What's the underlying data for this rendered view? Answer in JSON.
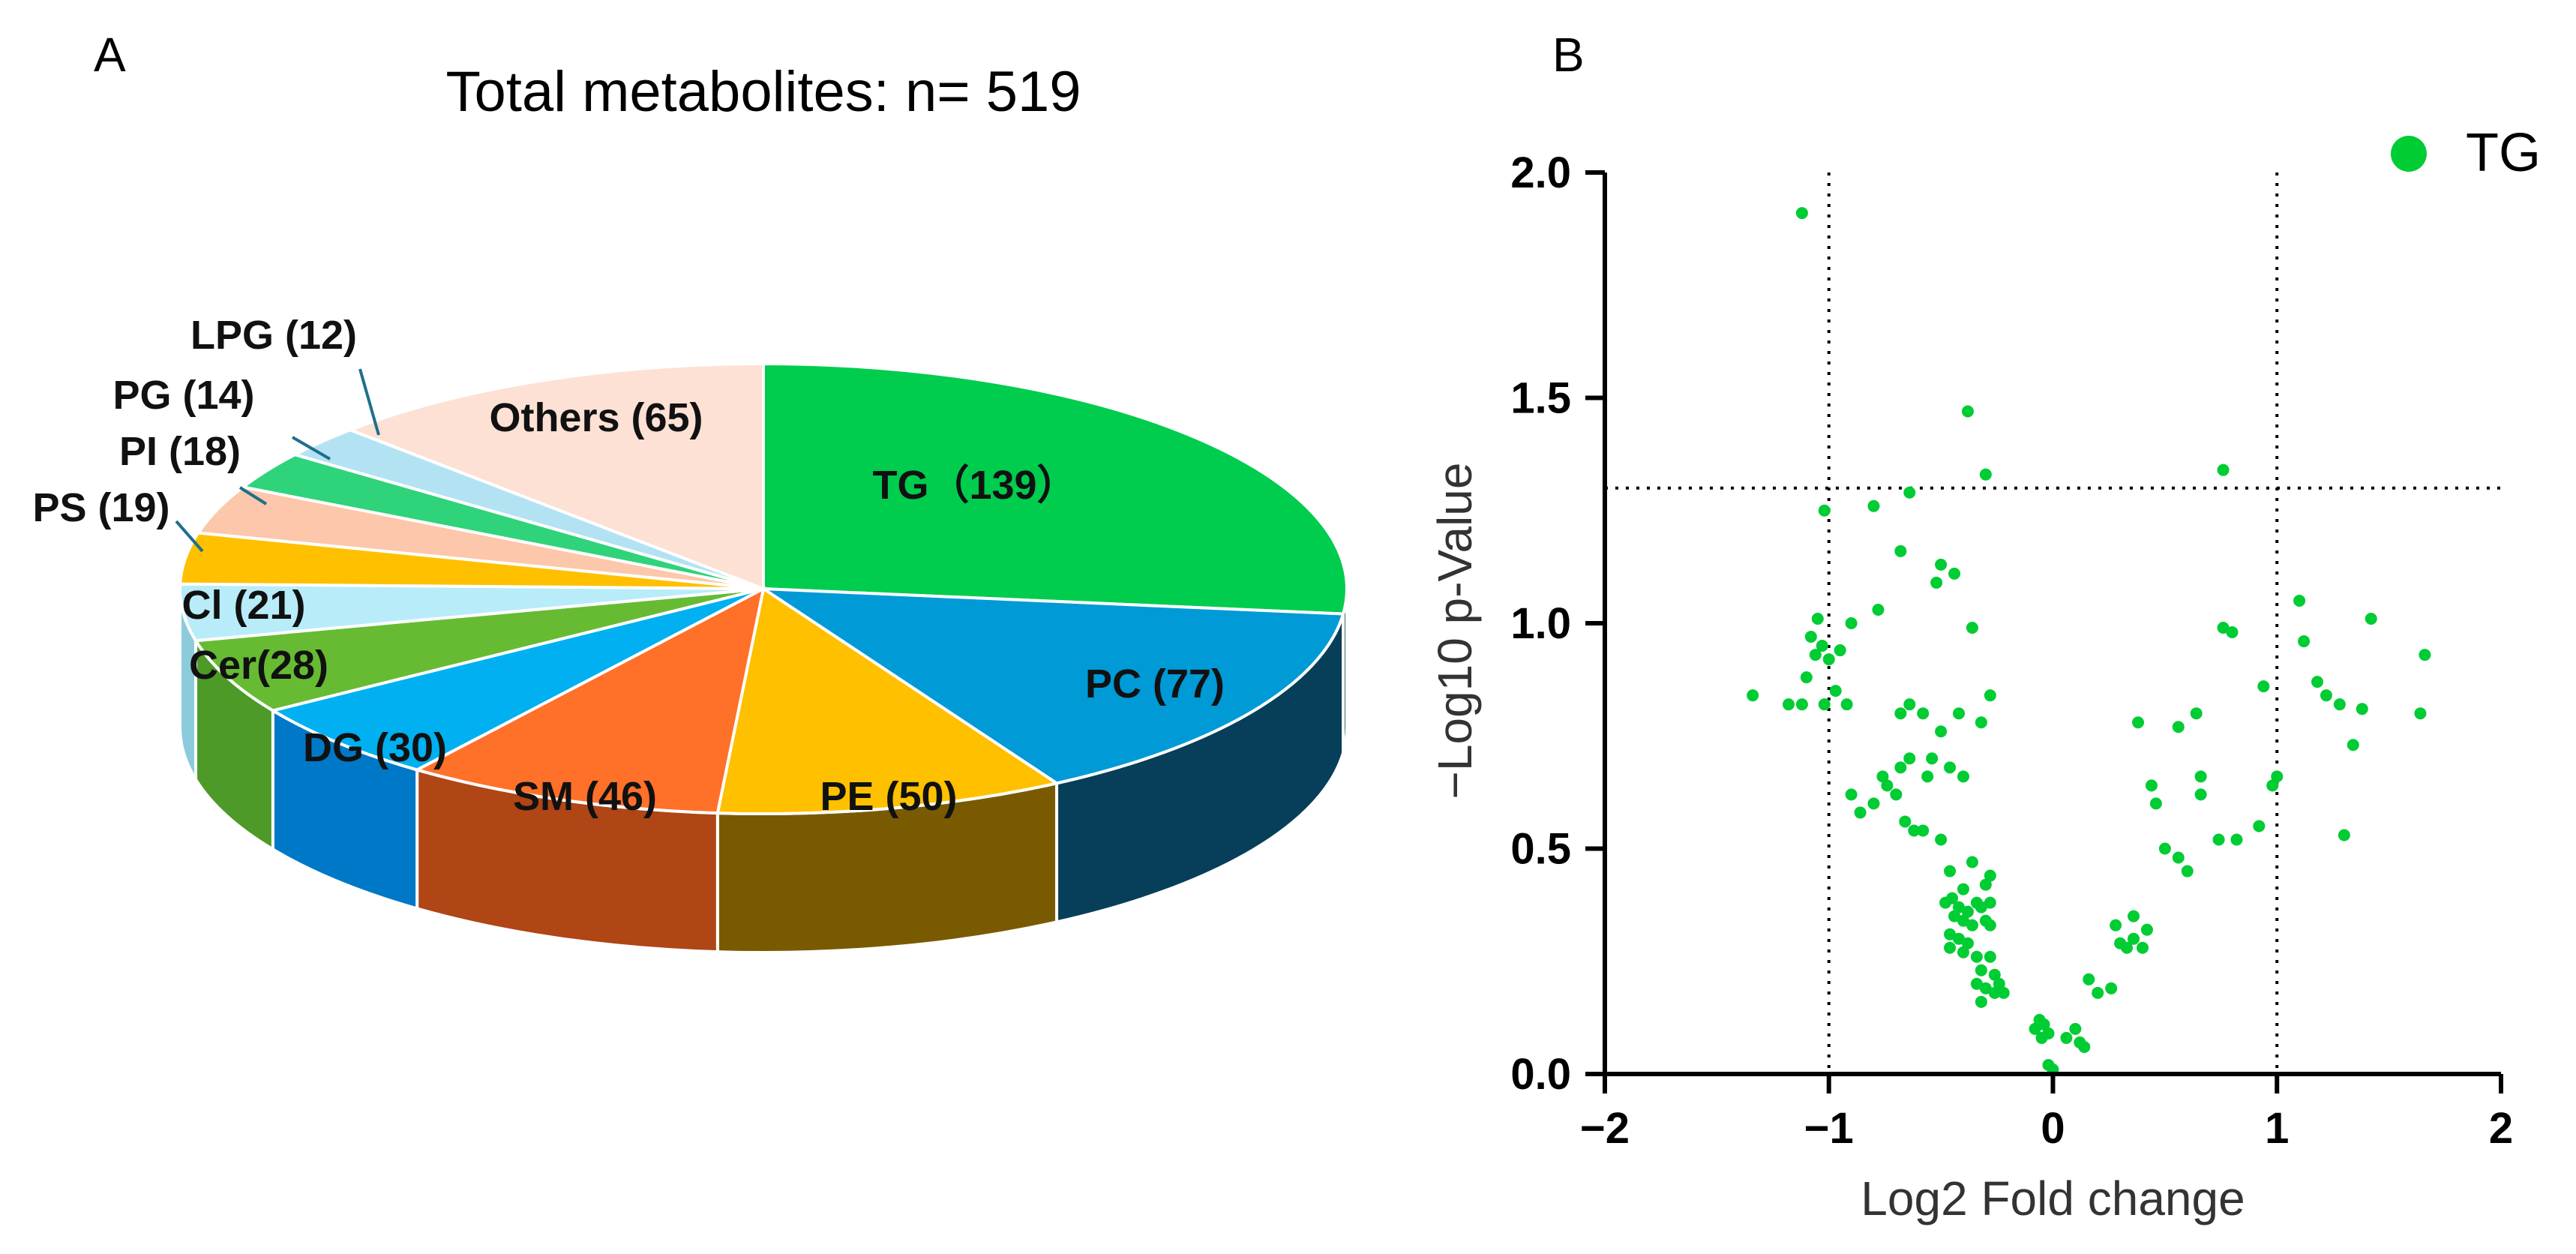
{
  "panel_a": {
    "letter": "A",
    "title": "Total metabolites: n= 519"
  },
  "panel_b": {
    "letter": "B"
  },
  "chart_data": [
    {
      "type": "pie",
      "title": "Total metabolites: n= 519",
      "total": 519,
      "style": "3d",
      "slices": [
        {
          "label": "TG（139）",
          "value": 139,
          "color": "#00cc4e",
          "side": "#0a4226"
        },
        {
          "label": "PC (77)",
          "value": 77,
          "color": "#009ad6",
          "side": "#073f5a"
        },
        {
          "label": "PE (50)",
          "value": 50,
          "color": "#ffc000",
          "side": "#7a5a00"
        },
        {
          "label": "SM (46)",
          "value": 46,
          "color": "#ff7028",
          "side": "#b04515"
        },
        {
          "label": "DG (30)",
          "value": 30,
          "color": "#00b0f0",
          "side": "#0078c8"
        },
        {
          "label": "Cer(28)",
          "value": 28,
          "color": "#66bb33",
          "side": "#4e9a28"
        },
        {
          "label": "Cl (21)",
          "value": 21,
          "color": "#b8ecf8",
          "side": "#8ccbdc"
        },
        {
          "label": "PS (19)",
          "value": 19,
          "color": "#ffc000",
          "side": "#c09000"
        },
        {
          "label": "PI (18)",
          "value": 18,
          "color": "#fcc7aa",
          "side": "#d0987a"
        },
        {
          "label": "PG (14)",
          "value": 14,
          "color": "#2ed37a",
          "side": "#1a9a55"
        },
        {
          "label": "LPG (12)",
          "value": 12,
          "color": "#b3e3f3",
          "side": "#86bfd2"
        },
        {
          "label": "Others (65)",
          "value": 65,
          "color": "#fde1d4",
          "side": "#d8b6a6"
        }
      ]
    },
    {
      "type": "scatter",
      "title": "",
      "xlabel": "Log2 Fold change",
      "ylabel": "−Log10 p-Value",
      "xlim": [
        -2,
        2
      ],
      "ylim": [
        0,
        2.0
      ],
      "xticks": [
        -2,
        -1,
        0,
        1,
        2
      ],
      "xtick_labels": [
        "−2",
        "−1",
        "0",
        "1",
        "2"
      ],
      "yticks": [
        0,
        0.5,
        1.0,
        1.5,
        2.0
      ],
      "ytick_labels": [
        "0.0",
        "0.5",
        "1.0",
        "1.5",
        "2.0"
      ],
      "reference_lines": {
        "x": [
          -1,
          1
        ],
        "y": [
          1.3
        ],
        "style": "dotted"
      },
      "series": [
        {
          "name": "TG",
          "color": "#00cc33",
          "points": [
            [
              -1.12,
              1.91
            ],
            [
              -0.38,
              1.47
            ],
            [
              0.76,
              1.34
            ],
            [
              -0.3,
              1.33
            ],
            [
              -0.64,
              1.29
            ],
            [
              -0.8,
              1.26
            ],
            [
              -1.02,
              1.25
            ],
            [
              -0.68,
              1.16
            ],
            [
              -0.5,
              1.13
            ],
            [
              -0.44,
              1.11
            ],
            [
              -0.52,
              1.09
            ],
            [
              -1.05,
              1.01
            ],
            [
              -0.9,
              1.0
            ],
            [
              -0.78,
              1.03
            ],
            [
              -0.36,
              0.99
            ],
            [
              -1.08,
              0.97
            ],
            [
              -1.03,
              0.95
            ],
            [
              -0.95,
              0.94
            ],
            [
              -1.06,
              0.93
            ],
            [
              -1.0,
              0.92
            ],
            [
              -1.1,
              0.88
            ],
            [
              -0.97,
              0.85
            ],
            [
              -0.92,
              0.82
            ],
            [
              -1.02,
              0.82
            ],
            [
              -1.12,
              0.82
            ],
            [
              -1.18,
              0.82
            ],
            [
              -1.34,
              0.84
            ],
            [
              -0.28,
              0.84
            ],
            [
              -0.32,
              0.78
            ],
            [
              -0.64,
              0.82
            ],
            [
              -0.68,
              0.8
            ],
            [
              -0.58,
              0.8
            ],
            [
              -0.42,
              0.8
            ],
            [
              -0.5,
              0.76
            ],
            [
              -0.54,
              0.7
            ],
            [
              -0.64,
              0.7
            ],
            [
              -0.68,
              0.68
            ],
            [
              -0.76,
              0.66
            ],
            [
              -0.9,
              0.62
            ],
            [
              -0.7,
              0.62
            ],
            [
              -0.74,
              0.64
            ],
            [
              -0.56,
              0.66
            ],
            [
              -0.46,
              0.68
            ],
            [
              -0.4,
              0.66
            ],
            [
              -0.86,
              0.58
            ],
            [
              -0.8,
              0.6
            ],
            [
              -0.66,
              0.56
            ],
            [
              -0.62,
              0.54
            ],
            [
              -0.58,
              0.54
            ],
            [
              -0.5,
              0.52
            ],
            [
              -0.46,
              0.45
            ],
            [
              -0.36,
              0.47
            ],
            [
              -0.3,
              0.42
            ],
            [
              -0.28,
              0.44
            ],
            [
              -0.4,
              0.41
            ],
            [
              -0.45,
              0.39
            ],
            [
              -0.48,
              0.38
            ],
            [
              -0.42,
              0.37
            ],
            [
              -0.38,
              0.36
            ],
            [
              -0.34,
              0.38
            ],
            [
              -0.32,
              0.37
            ],
            [
              -0.28,
              0.38
            ],
            [
              -0.44,
              0.35
            ],
            [
              -0.4,
              0.34
            ],
            [
              -0.36,
              0.33
            ],
            [
              -0.3,
              0.34
            ],
            [
              -0.28,
              0.33
            ],
            [
              -0.46,
              0.31
            ],
            [
              -0.42,
              0.3
            ],
            [
              -0.38,
              0.29
            ],
            [
              -0.46,
              0.28
            ],
            [
              -0.4,
              0.27
            ],
            [
              -0.34,
              0.26
            ],
            [
              -0.28,
              0.26
            ],
            [
              -0.32,
              0.23
            ],
            [
              -0.26,
              0.22
            ],
            [
              -0.34,
              0.2
            ],
            [
              -0.3,
              0.19
            ],
            [
              -0.24,
              0.2
            ],
            [
              -0.26,
              0.18
            ],
            [
              -0.22,
              0.18
            ],
            [
              -0.32,
              0.16
            ],
            [
              -0.06,
              0.12
            ],
            [
              -0.04,
              0.11
            ],
            [
              -0.08,
              0.1
            ],
            [
              -0.02,
              0.09
            ],
            [
              -0.05,
              0.08
            ],
            [
              -0.02,
              0.02
            ],
            [
              0.0,
              0.01
            ],
            [
              0.1,
              0.1
            ],
            [
              0.06,
              0.08
            ],
            [
              0.12,
              0.07
            ],
            [
              0.14,
              0.06
            ],
            [
              0.16,
              0.21
            ],
            [
              0.2,
              0.18
            ],
            [
              0.26,
              0.19
            ],
            [
              0.3,
              0.29
            ],
            [
              0.28,
              0.33
            ],
            [
              0.36,
              0.35
            ],
            [
              0.36,
              0.3
            ],
            [
              0.4,
              0.28
            ],
            [
              0.42,
              0.32
            ],
            [
              0.33,
              0.28
            ],
            [
              0.38,
              0.78
            ],
            [
              0.44,
              0.64
            ],
            [
              0.46,
              0.6
            ],
            [
              0.56,
              0.77
            ],
            [
              0.64,
              0.8
            ],
            [
              0.66,
              0.66
            ],
            [
              0.66,
              0.62
            ],
            [
              0.56,
              0.48
            ],
            [
              0.5,
              0.5
            ],
            [
              0.6,
              0.45
            ],
            [
              0.74,
              0.52
            ],
            [
              0.76,
              0.99
            ],
            [
              0.8,
              0.98
            ],
            [
              0.82,
              0.52
            ],
            [
              0.92,
              0.55
            ],
            [
              0.94,
              0.86
            ],
            [
              0.98,
              0.64
            ],
            [
              1.0,
              0.66
            ],
            [
              1.1,
              1.05
            ],
            [
              1.12,
              0.96
            ],
            [
              1.18,
              0.87
            ],
            [
              1.22,
              0.84
            ],
            [
              1.28,
              0.82
            ],
            [
              1.3,
              0.53
            ],
            [
              1.34,
              0.73
            ],
            [
              1.38,
              0.81
            ],
            [
              1.42,
              1.01
            ],
            [
              1.66,
              0.93
            ],
            [
              1.64,
              0.8
            ]
          ]
        }
      ],
      "legend": {
        "position": "top-right",
        "entries": [
          "TG"
        ]
      }
    }
  ]
}
